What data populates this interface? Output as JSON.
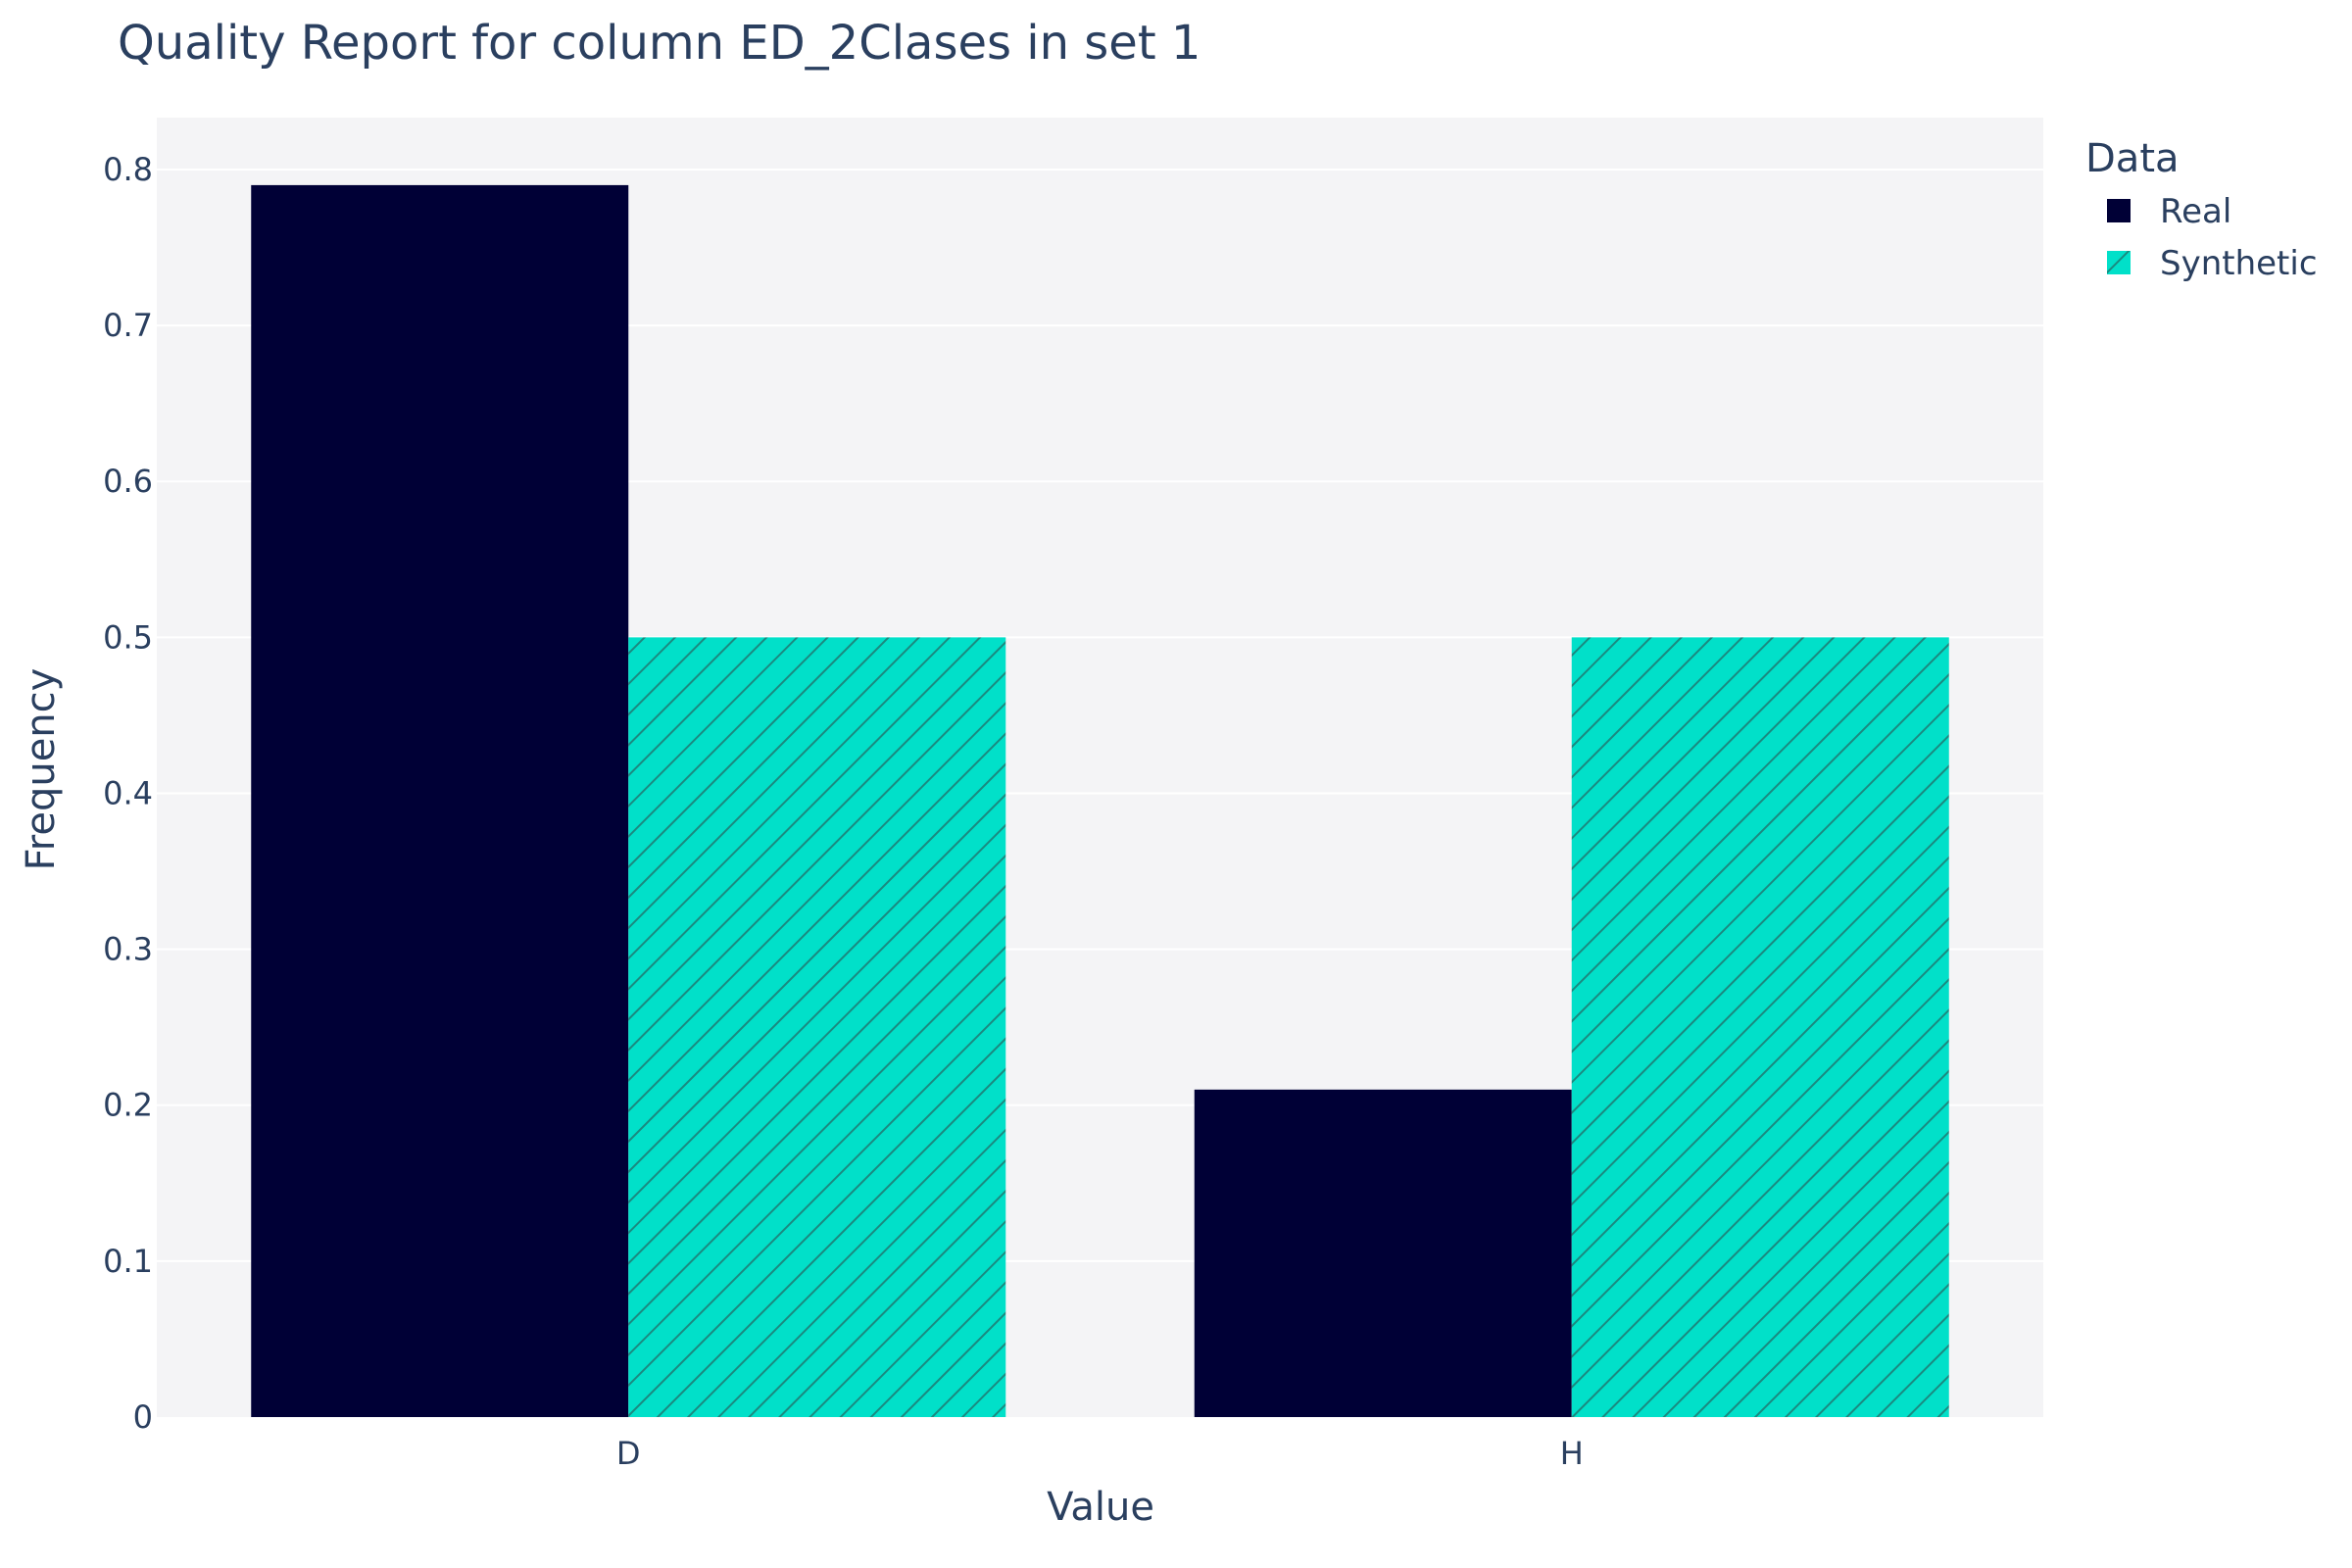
{
  "chart_data": {
    "type": "bar",
    "title": "Quality Report for column ED_2Clases in set 1",
    "xlabel": "Value",
    "ylabel": "Frequency",
    "categories": [
      "D",
      "H"
    ],
    "series": [
      {
        "name": "Real",
        "values": [
          0.79,
          0.21
        ],
        "color": "#000036",
        "pattern": "solid"
      },
      {
        "name": "Synthetic",
        "values": [
          0.5,
          0.5
        ],
        "color": "#01E0C9",
        "pattern": "diagonal-hatch"
      }
    ],
    "ylim": [
      0,
      0.8333
    ],
    "yticks": [
      0,
      0.1,
      0.2,
      0.3,
      0.4,
      0.5,
      0.6,
      0.7,
      0.8
    ],
    "ytick_labels": [
      "0",
      "0.1",
      "0.2",
      "0.3",
      "0.4",
      "0.5",
      "0.6",
      "0.7",
      "0.8"
    ],
    "grid": true,
    "legend": {
      "title": "Data",
      "position": "top-right"
    },
    "colors": {
      "plot_bg": "#F4F4F6",
      "grid": "#FFFFFF",
      "text": "#2a3f5f",
      "hatch": "#1A8A80"
    }
  }
}
